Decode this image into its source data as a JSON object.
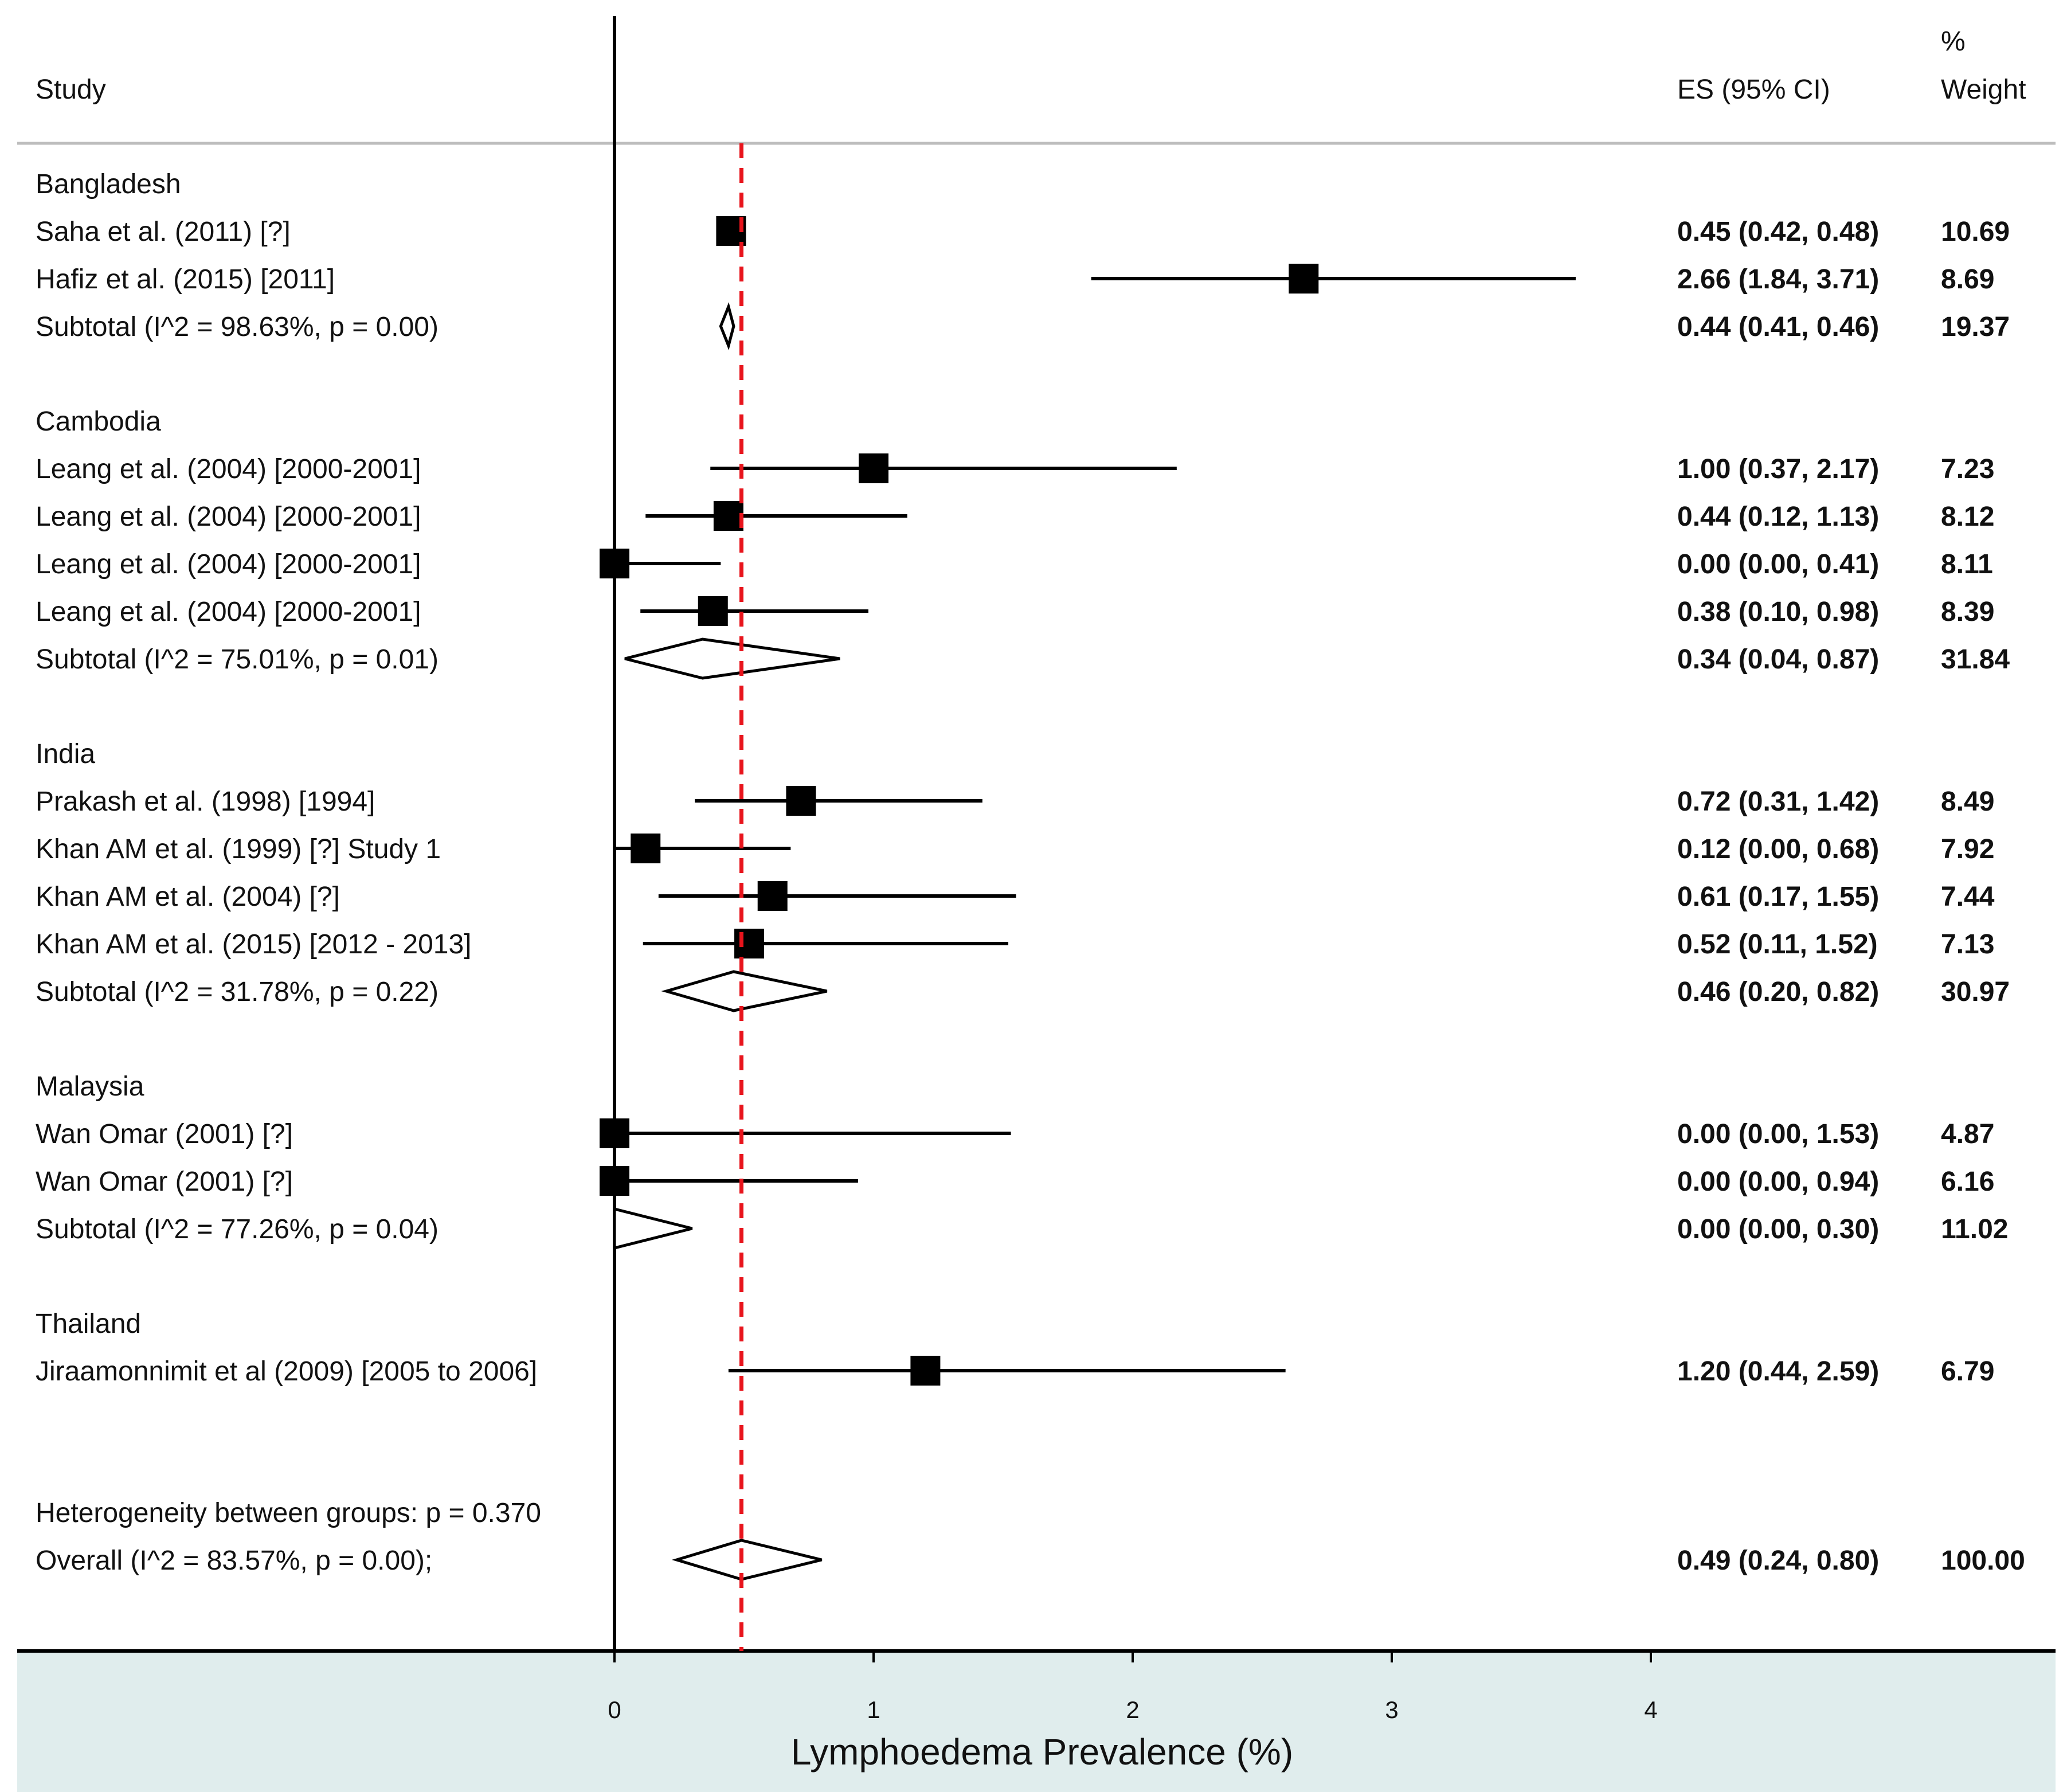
{
  "chart_data": {
    "type": "forest",
    "title": "",
    "xlabel": "Lymphoedema Prevalence (%)",
    "xlim": [
      0,
      4
    ],
    "xticks": [
      "0",
      "1",
      "2",
      "3",
      "4"
    ],
    "pooled_estimate": 0.49,
    "header": {
      "study": "Study",
      "es": "ES (95% CI)",
      "weight_line1": "%",
      "weight_line2": "Weight"
    },
    "groups": [
      {
        "name": "Bangladesh",
        "studies": [
          {
            "label": "Saha et al.  (2011) [?]",
            "es": 0.45,
            "lo": 0.42,
            "hi": 0.48,
            "es_text": "0.45 (0.42, 0.48)",
            "weight": "10.69"
          },
          {
            "label": "Hafiz et al. (2015) [2011]",
            "es": 2.66,
            "lo": 1.84,
            "hi": 3.71,
            "es_text": "2.66 (1.84, 3.71)",
            "weight": "8.69"
          }
        ],
        "subtotal": {
          "label": "Subtotal  (I^2 = 98.63%, p = 0.00)",
          "es": 0.44,
          "lo": 0.41,
          "hi": 0.46,
          "es_text": "0.44 (0.41, 0.46)",
          "weight": "19.37"
        }
      },
      {
        "name": "Cambodia",
        "studies": [
          {
            "label": "Leang et al. (2004) [2000-2001]",
            "es": 1.0,
            "lo": 0.37,
            "hi": 2.17,
            "es_text": "1.00 (0.37, 2.17)",
            "weight": "7.23"
          },
          {
            "label": "Leang et al. (2004) [2000-2001]",
            "es": 0.44,
            "lo": 0.12,
            "hi": 1.13,
            "es_text": "0.44 (0.12, 1.13)",
            "weight": "8.12"
          },
          {
            "label": "Leang et al. (2004) [2000-2001]",
            "es": 0.0,
            "lo": 0.0,
            "hi": 0.41,
            "es_text": "0.00 (0.00, 0.41)",
            "weight": "8.11"
          },
          {
            "label": "Leang et al. (2004) [2000-2001]",
            "es": 0.38,
            "lo": 0.1,
            "hi": 0.98,
            "es_text": "0.38 (0.10, 0.98)",
            "weight": "8.39"
          }
        ],
        "subtotal": {
          "label": "Subtotal  (I^2 = 75.01%, p = 0.01)",
          "es": 0.34,
          "lo": 0.04,
          "hi": 0.87,
          "es_text": "0.34 (0.04, 0.87)",
          "weight": "31.84"
        }
      },
      {
        "name": "India",
        "studies": [
          {
            "label": "Prakash et al. (1998) [1994]",
            "es": 0.72,
            "lo": 0.31,
            "hi": 1.42,
            "es_text": "0.72 (0.31, 1.42)",
            "weight": "8.49"
          },
          {
            "label": "Khan AM et al. (1999) [?] Study 1",
            "es": 0.12,
            "lo": 0.0,
            "hi": 0.68,
            "es_text": "0.12 (0.00, 0.68)",
            "weight": "7.92"
          },
          {
            "label": "Khan AM et al. (2004) [?]",
            "es": 0.61,
            "lo": 0.17,
            "hi": 1.55,
            "es_text": "0.61 (0.17, 1.55)",
            "weight": "7.44"
          },
          {
            "label": "Khan AM et al. (2015) [2012 - 2013]",
            "es": 0.52,
            "lo": 0.11,
            "hi": 1.52,
            "es_text": "0.52 (0.11, 1.52)",
            "weight": "7.13"
          }
        ],
        "subtotal": {
          "label": "Subtotal  (I^2 = 31.78%, p = 0.22)",
          "es": 0.46,
          "lo": 0.2,
          "hi": 0.82,
          "es_text": "0.46 (0.20, 0.82)",
          "weight": "30.97"
        }
      },
      {
        "name": "Malaysia",
        "studies": [
          {
            "label": "Wan Omar (2001) [?]",
            "es": 0.0,
            "lo": 0.0,
            "hi": 1.53,
            "es_text": "0.00 (0.00, 1.53)",
            "weight": "4.87"
          },
          {
            "label": "Wan Omar (2001) [?]",
            "es": 0.0,
            "lo": 0.0,
            "hi": 0.94,
            "es_text": "0.00 (0.00, 0.94)",
            "weight": "6.16"
          }
        ],
        "subtotal": {
          "label": "Subtotal  (I^2 = 77.26%, p = 0.04)",
          "es": 0.0,
          "lo": 0.0,
          "hi": 0.3,
          "es_text": "0.00 (0.00, 0.30)",
          "weight": "11.02"
        }
      },
      {
        "name": "Thailand",
        "studies": [
          {
            "label": "Jiraamonnimit et al (2009) [2005 to 2006]",
            "es": 1.2,
            "lo": 0.44,
            "hi": 2.59,
            "es_text": "1.20 (0.44, 2.59)",
            "weight": "6.79"
          }
        ],
        "subtotal": null
      }
    ],
    "heterogeneity_text": "Heterogeneity between groups: p = 0.370",
    "overall": {
      "label": "Overall  (I^2 = 83.57%, p = 0.00);",
      "es": 0.49,
      "lo": 0.24,
      "hi": 0.8,
      "es_text": "0.49 (0.24, 0.80)",
      "weight": "100.00"
    }
  }
}
